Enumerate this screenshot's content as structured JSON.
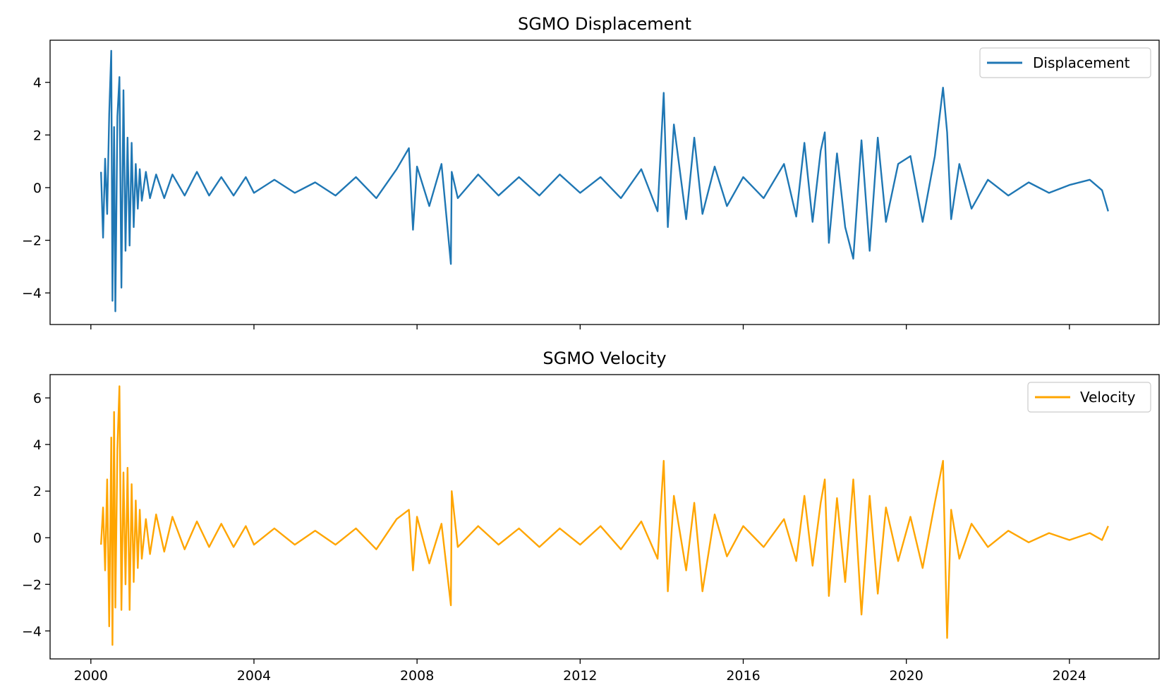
{
  "chart_data": [
    {
      "type": "line",
      "title": "SGMO Displacement",
      "xlabel": "",
      "ylabel": "",
      "xlim": [
        1999.0,
        2026.2
      ],
      "ylim": [
        -5.2,
        5.6
      ],
      "x_ticks": [
        2000,
        2004,
        2008,
        2012,
        2016,
        2020,
        2024
      ],
      "x_tick_labels_shown": false,
      "y_ticks": [
        -4,
        -2,
        0,
        2,
        4
      ],
      "y_tick_labels": [
        "−4",
        "−2",
        "0",
        "2",
        "4"
      ],
      "grid": false,
      "legend_position": "upper right",
      "series": [
        {
          "name": "Displacement",
          "color": "#1f77b4",
          "x": [
            2000.25,
            2000.3,
            2000.35,
            2000.4,
            2000.45,
            2000.5,
            2000.53,
            2000.57,
            2000.6,
            2000.65,
            2000.7,
            2000.75,
            2000.8,
            2000.85,
            2000.9,
            2000.95,
            2001.0,
            2001.05,
            2001.1,
            2001.15,
            2001.2,
            2001.25,
            2001.35,
            2001.45,
            2001.6,
            2001.8,
            2002.0,
            2002.3,
            2002.6,
            2002.9,
            2003.2,
            2003.5,
            2003.8,
            2004.0,
            2004.5,
            2005.0,
            2005.5,
            2006.0,
            2006.5,
            2007.0,
            2007.5,
            2007.8,
            2007.9,
            2008.0,
            2008.3,
            2008.6,
            2008.83,
            2008.85,
            2009.0,
            2009.5,
            2010.0,
            2010.5,
            2011.0,
            2011.5,
            2012.0,
            2012.5,
            2013.0,
            2013.5,
            2013.9,
            2014.05,
            2014.15,
            2014.3,
            2014.6,
            2014.8,
            2015.0,
            2015.3,
            2015.6,
            2016.0,
            2016.5,
            2017.0,
            2017.3,
            2017.5,
            2017.7,
            2017.9,
            2018.0,
            2018.1,
            2018.3,
            2018.5,
            2018.7,
            2018.9,
            2019.1,
            2019.3,
            2019.5,
            2019.8,
            2020.1,
            2020.4,
            2020.7,
            2020.9,
            2021.0,
            2021.1,
            2021.3,
            2021.6,
            2022.0,
            2022.5,
            2023.0,
            2023.5,
            2024.0,
            2024.5,
            2024.8,
            2024.95
          ],
          "values": [
            0.6,
            -1.9,
            1.1,
            -1.0,
            2.8,
            5.2,
            -4.3,
            2.3,
            -4.7,
            2.7,
            4.2,
            -3.8,
            3.7,
            -2.4,
            1.9,
            -2.2,
            1.7,
            -1.5,
            0.9,
            -0.8,
            0.7,
            -0.5,
            0.6,
            -0.4,
            0.5,
            -0.4,
            0.5,
            -0.3,
            0.6,
            -0.3,
            0.4,
            -0.3,
            0.4,
            -0.2,
            0.3,
            -0.2,
            0.2,
            -0.3,
            0.4,
            -0.4,
            0.7,
            1.5,
            -1.6,
            0.8,
            -0.7,
            0.9,
            -2.9,
            0.6,
            -0.4,
            0.5,
            -0.3,
            0.4,
            -0.3,
            0.5,
            -0.2,
            0.4,
            -0.4,
            0.7,
            -0.9,
            3.6,
            -1.5,
            2.4,
            -1.2,
            1.9,
            -1.0,
            0.8,
            -0.7,
            0.4,
            -0.4,
            0.9,
            -1.1,
            1.7,
            -1.3,
            1.4,
            2.1,
            -2.1,
            1.3,
            -1.5,
            -2.7,
            1.8,
            -2.4,
            1.9,
            -1.3,
            0.9,
            1.2,
            -1.3,
            1.2,
            3.8,
            2.1,
            -1.2,
            0.9,
            -0.8,
            0.3,
            -0.3,
            0.2,
            -0.2,
            0.1,
            0.3,
            -0.1,
            -0.9
          ]
        }
      ]
    },
    {
      "type": "line",
      "title": "SGMO Velocity",
      "xlabel": "",
      "ylabel": "",
      "xlim": [
        1999.0,
        2026.2
      ],
      "ylim": [
        -5.2,
        7.0
      ],
      "x_ticks": [
        2000,
        2004,
        2008,
        2012,
        2016,
        2020,
        2024
      ],
      "x_tick_labels": [
        "2000",
        "2004",
        "2008",
        "2012",
        "2016",
        "2020",
        "2024"
      ],
      "y_ticks": [
        -4,
        -2,
        0,
        2,
        4,
        6
      ],
      "y_tick_labels": [
        "−4",
        "−2",
        "0",
        "2",
        "4",
        "6"
      ],
      "grid": false,
      "legend_position": "upper right",
      "series": [
        {
          "name": "Velocity",
          "color": "#ffa500",
          "x": [
            2000.25,
            2000.3,
            2000.35,
            2000.4,
            2000.45,
            2000.5,
            2000.53,
            2000.57,
            2000.6,
            2000.65,
            2000.7,
            2000.75,
            2000.8,
            2000.85,
            2000.9,
            2000.95,
            2001.0,
            2001.05,
            2001.1,
            2001.15,
            2001.2,
            2001.25,
            2001.35,
            2001.45,
            2001.6,
            2001.8,
            2002.0,
            2002.3,
            2002.6,
            2002.9,
            2003.2,
            2003.5,
            2003.8,
            2004.0,
            2004.5,
            2005.0,
            2005.5,
            2006.0,
            2006.5,
            2007.0,
            2007.5,
            2007.8,
            2007.9,
            2008.0,
            2008.3,
            2008.6,
            2008.83,
            2008.85,
            2009.0,
            2009.5,
            2010.0,
            2010.5,
            2011.0,
            2011.5,
            2012.0,
            2012.5,
            2013.0,
            2013.5,
            2013.9,
            2014.05,
            2014.15,
            2014.3,
            2014.6,
            2014.8,
            2015.0,
            2015.3,
            2015.6,
            2016.0,
            2016.5,
            2017.0,
            2017.3,
            2017.5,
            2017.7,
            2017.9,
            2018.0,
            2018.1,
            2018.3,
            2018.5,
            2018.7,
            2018.9,
            2019.1,
            2019.3,
            2019.5,
            2019.8,
            2020.1,
            2020.4,
            2020.7,
            2020.9,
            2021.0,
            2021.1,
            2021.3,
            2021.6,
            2022.0,
            2022.5,
            2023.0,
            2023.5,
            2024.0,
            2024.5,
            2024.8,
            2024.95
          ],
          "values": [
            -0.3,
            1.3,
            -1.4,
            2.5,
            -3.8,
            4.3,
            -4.6,
            5.4,
            -3.0,
            3.8,
            6.5,
            -3.1,
            2.8,
            -2.0,
            3.0,
            -3.1,
            2.3,
            -1.9,
            1.6,
            -1.3,
            1.2,
            -0.9,
            0.8,
            -0.7,
            1.0,
            -0.6,
            0.9,
            -0.5,
            0.7,
            -0.4,
            0.6,
            -0.4,
            0.5,
            -0.3,
            0.4,
            -0.3,
            0.3,
            -0.3,
            0.4,
            -0.5,
            0.8,
            1.2,
            -1.4,
            0.9,
            -1.1,
            0.6,
            -2.9,
            2.0,
            -0.4,
            0.5,
            -0.3,
            0.4,
            -0.4,
            0.4,
            -0.3,
            0.5,
            -0.5,
            0.7,
            -0.9,
            3.3,
            -2.3,
            1.8,
            -1.4,
            1.5,
            -2.3,
            1.0,
            -0.8,
            0.5,
            -0.4,
            0.8,
            -1.0,
            1.8,
            -1.2,
            1.5,
            2.5,
            -2.5,
            1.7,
            -1.9,
            2.5,
            -3.3,
            1.8,
            -2.4,
            1.3,
            -1.0,
            0.9,
            -1.3,
            1.5,
            3.3,
            -4.3,
            1.2,
            -0.9,
            0.6,
            -0.4,
            0.3,
            -0.2,
            0.2,
            -0.1,
            0.2,
            -0.1,
            0.5
          ]
        }
      ]
    }
  ]
}
